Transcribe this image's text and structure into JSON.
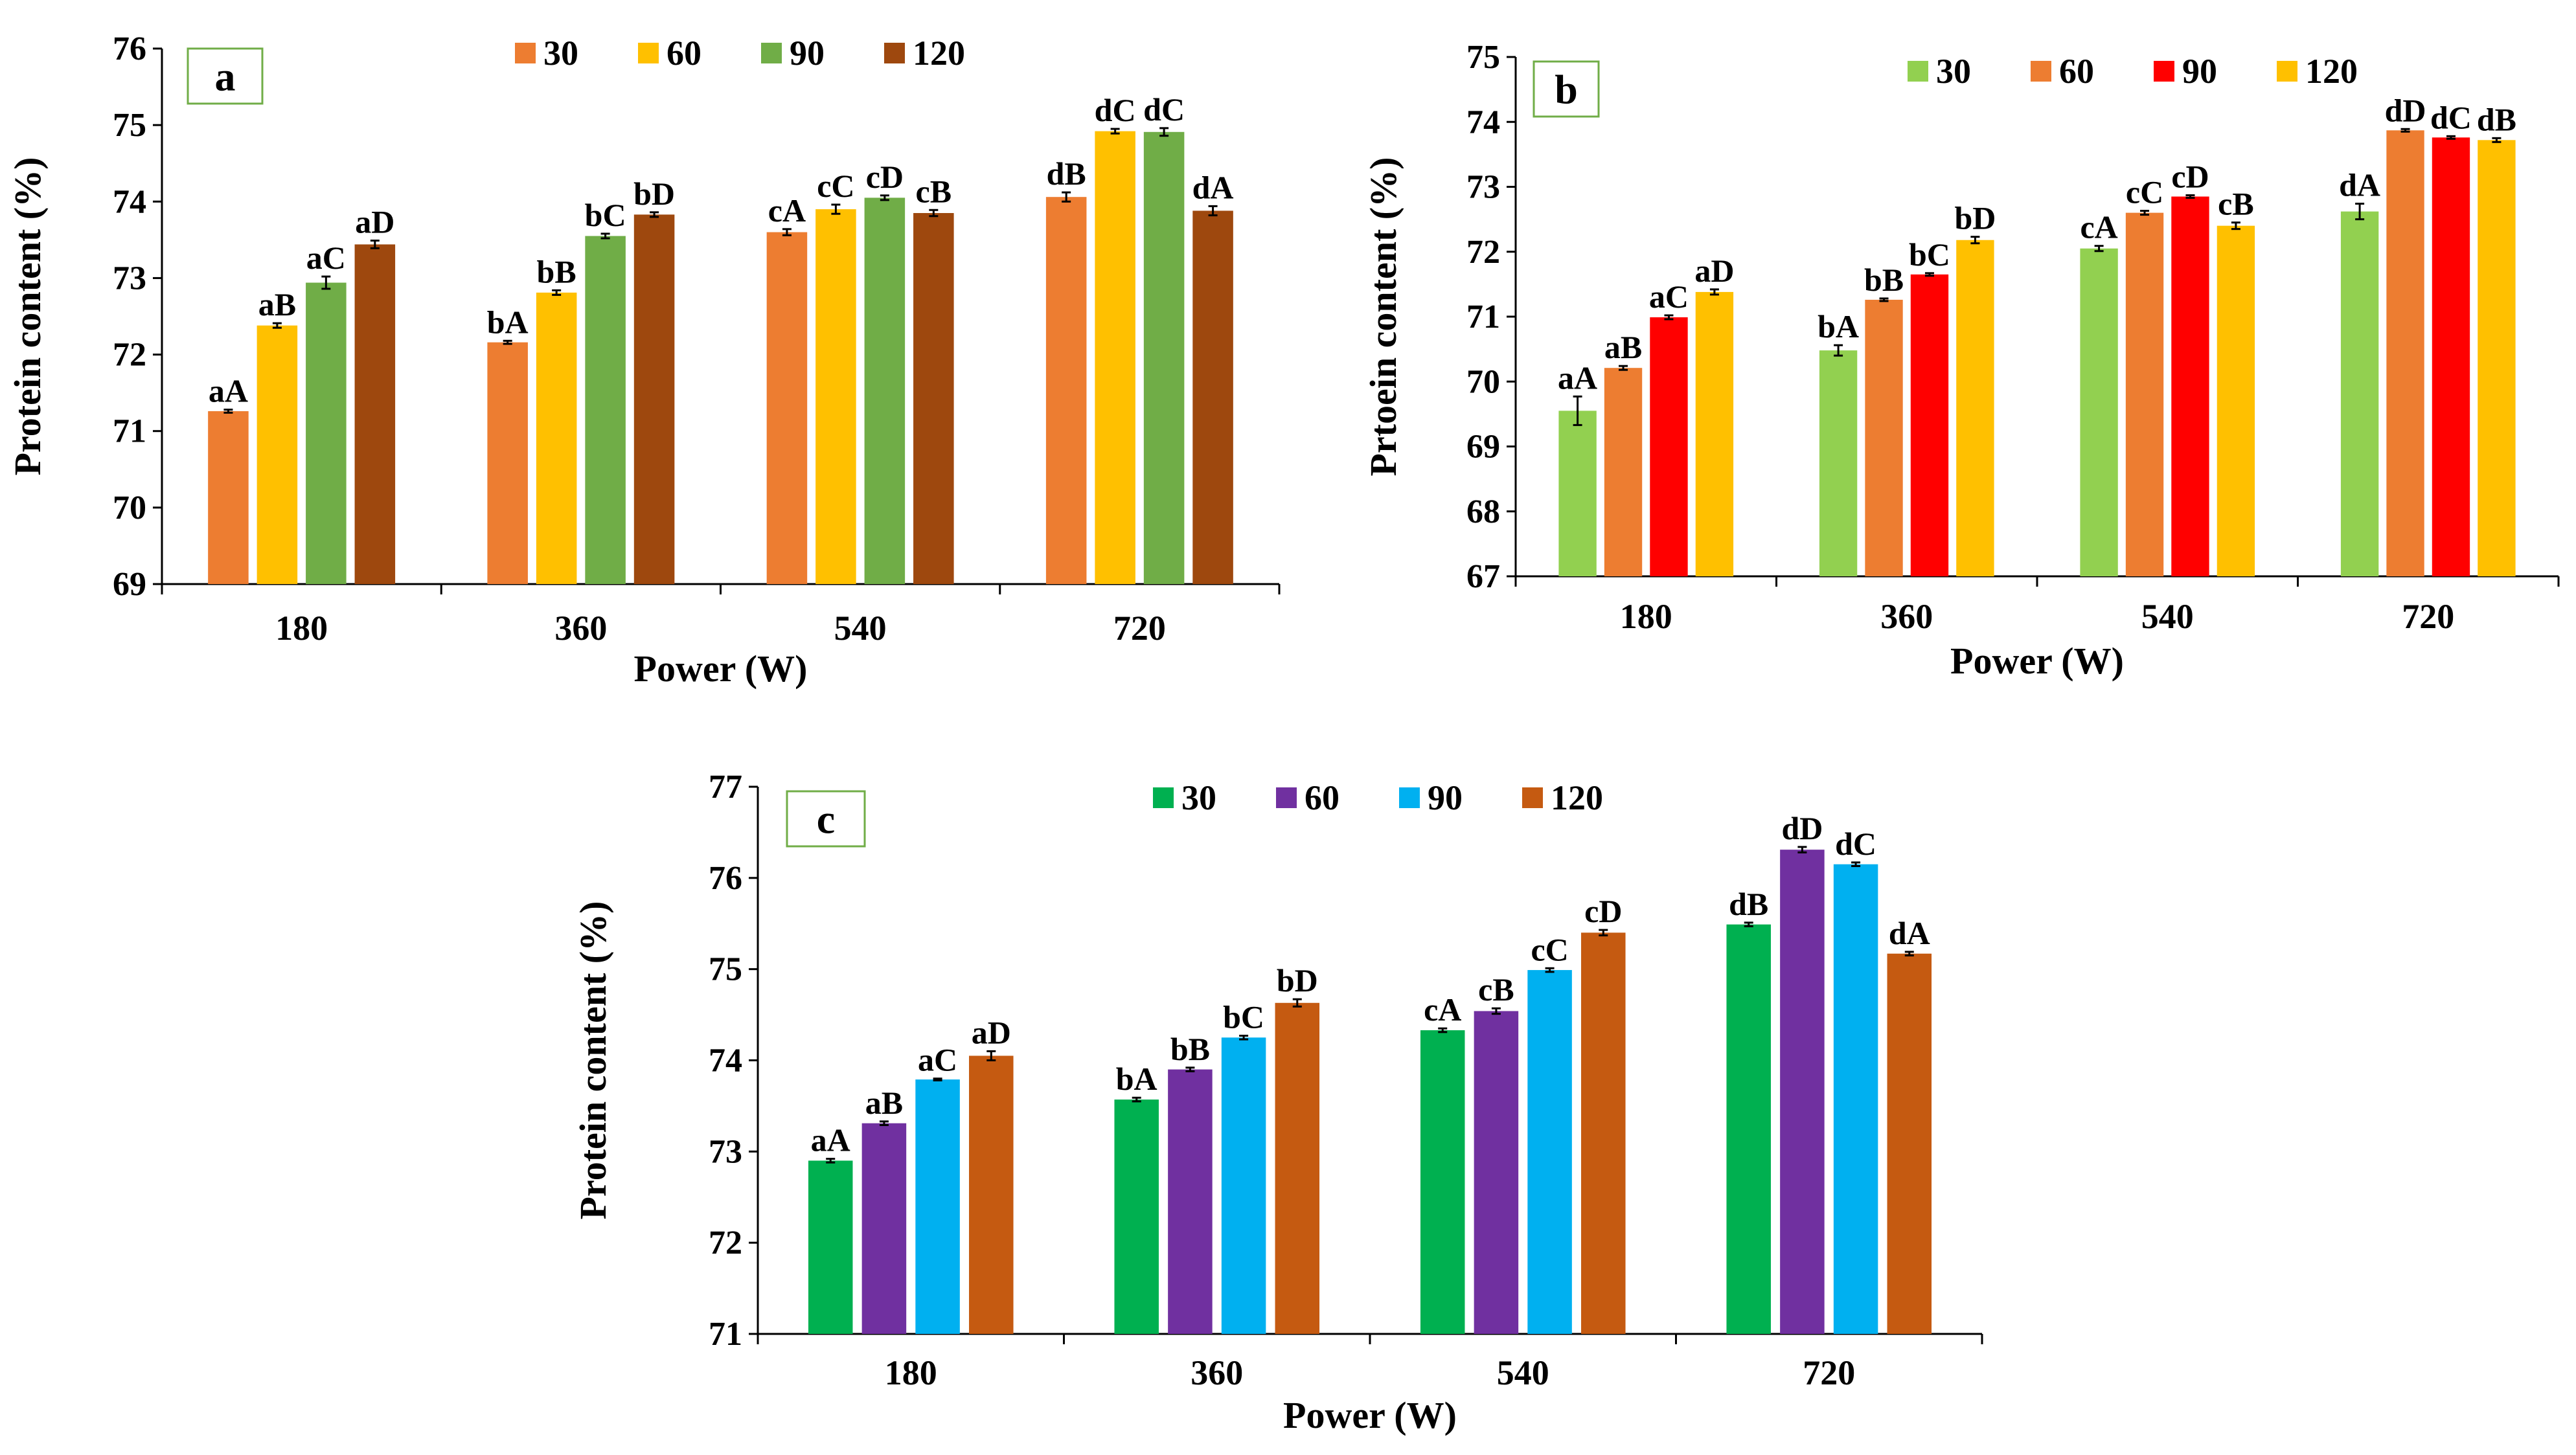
{
  "chart_data": [
    {
      "type": "bar",
      "panel_label": "a",
      "xlabel": "Power (W)",
      "ylabel": "Protein content (%)",
      "ylim": [
        69,
        76
      ],
      "yticks": [
        "69",
        "70",
        "71",
        "72",
        "73",
        "74",
        "75",
        "76"
      ],
      "categories": [
        "180",
        "360",
        "540",
        "720"
      ],
      "legend_placement": "top",
      "series": [
        {
          "name": "30",
          "color": "#ED7D31",
          "values": [
            71.26,
            72.16,
            73.6,
            74.06
          ],
          "errors": [
            0.02,
            0.02,
            0.04,
            0.06
          ],
          "labels": [
            "aA",
            "bA",
            "cA",
            "dB"
          ]
        },
        {
          "name": "60",
          "color": "#FFC000",
          "values": [
            72.38,
            72.81,
            73.9,
            74.92
          ],
          "errors": [
            0.03,
            0.03,
            0.06,
            0.03
          ],
          "labels": [
            "aB",
            "bB",
            "cC",
            "dC"
          ]
        },
        {
          "name": "90",
          "color": "#70AD47",
          "values": [
            72.94,
            73.55,
            74.05,
            74.91
          ],
          "errors": [
            0.08,
            0.03,
            0.03,
            0.05
          ],
          "labels": [
            "aC",
            "bC",
            "cD",
            "dC"
          ]
        },
        {
          "name": "120",
          "color": "#9E480E",
          "values": [
            73.44,
            73.83,
            73.85,
            73.88
          ],
          "errors": [
            0.05,
            0.03,
            0.04,
            0.06
          ],
          "labels": [
            "aD",
            "bD",
            "cB",
            "dA"
          ]
        }
      ]
    },
    {
      "type": "bar",
      "panel_label": "b",
      "xlabel": "Power (W)",
      "ylabel": "Prtoein content (%)",
      "ylim": [
        67,
        75
      ],
      "yticks": [
        "67",
        "68",
        "69",
        "70",
        "71",
        "72",
        "73",
        "74",
        "75"
      ],
      "categories": [
        "180",
        "360",
        "540",
        "720"
      ],
      "legend_placement": "top-right",
      "series": [
        {
          "name": "30",
          "color": "#92D050",
          "values": [
            69.55,
            70.48,
            72.05,
            72.62
          ],
          "errors": [
            0.22,
            0.08,
            0.04,
            0.12
          ],
          "labels": [
            "aA",
            "bA",
            "cA",
            "dA"
          ]
        },
        {
          "name": "60",
          "color": "#ED7D31",
          "values": [
            70.21,
            71.26,
            72.6,
            73.87
          ],
          "errors": [
            0.03,
            0.02,
            0.03,
            0.02
          ],
          "labels": [
            "aB",
            "bB",
            "cC",
            "dD"
          ]
        },
        {
          "name": "90",
          "color": "#FF0000",
          "values": [
            70.99,
            71.65,
            72.85,
            73.76
          ],
          "errors": [
            0.03,
            0.02,
            0.02,
            0.02
          ],
          "labels": [
            "aC",
            "bC",
            "cD",
            "dC"
          ]
        },
        {
          "name": "120",
          "color": "#FFC000",
          "values": [
            71.38,
            72.18,
            72.4,
            73.72
          ],
          "errors": [
            0.04,
            0.05,
            0.05,
            0.03
          ],
          "labels": [
            "aD",
            "bD",
            "cB",
            "dB"
          ]
        }
      ]
    },
    {
      "type": "bar",
      "panel_label": "c",
      "xlabel": "Power (W)",
      "ylabel": "Protein content (%)",
      "ylim": [
        71,
        77
      ],
      "yticks": [
        "71",
        "72",
        "73",
        "74",
        "75",
        "76",
        "77"
      ],
      "categories": [
        "180",
        "360",
        "540",
        "720"
      ],
      "legend_placement": "top",
      "series": [
        {
          "name": "30",
          "color": "#00B050",
          "values": [
            72.9,
            73.57,
            74.33,
            75.49
          ],
          "errors": [
            0.02,
            0.02,
            0.02,
            0.02
          ],
          "labels": [
            "aA",
            "bA",
            "cA",
            "dB"
          ]
        },
        {
          "name": "60",
          "color": "#7030A0",
          "values": [
            73.31,
            73.9,
            74.54,
            76.31
          ],
          "errors": [
            0.02,
            0.02,
            0.03,
            0.03
          ],
          "labels": [
            "aB",
            "bB",
            "cB",
            "dD"
          ]
        },
        {
          "name": "90",
          "color": "#00B0F0",
          "values": [
            73.79,
            74.25,
            74.99,
            76.15
          ],
          "errors": [
            0.01,
            0.02,
            0.02,
            0.02
          ],
          "labels": [
            "aC",
            "bC",
            "cC",
            "dC"
          ]
        },
        {
          "name": "120",
          "color": "#C55A11",
          "values": [
            74.05,
            74.63,
            75.4,
            75.17
          ],
          "errors": [
            0.05,
            0.04,
            0.03,
            0.02
          ],
          "labels": [
            "aD",
            "bD",
            "cD",
            "dA"
          ]
        }
      ]
    }
  ]
}
